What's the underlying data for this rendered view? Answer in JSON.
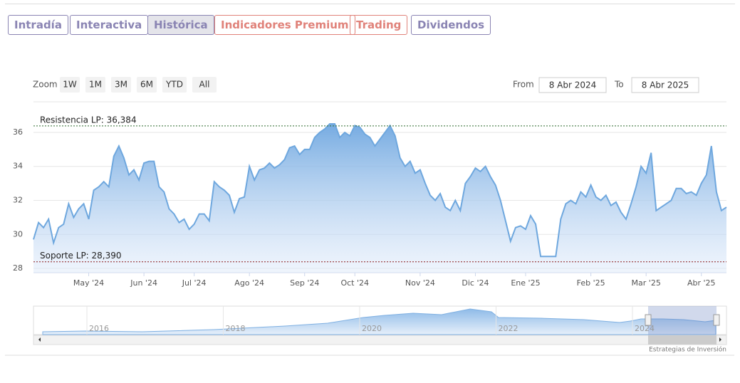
{
  "tabs": [
    "Intradía",
    "Interactiva",
    "Histórica",
    "Indicadores Premium",
    "Trading",
    "Dividendos"
  ],
  "zoom": {
    "label": "Zoom",
    "buttons": [
      "1W",
      "1M",
      "3M",
      "6M",
      "YTD",
      "All"
    ]
  },
  "date_range": {
    "from_label": "From",
    "from": "8 Abr 2024",
    "to_label": "To",
    "to": "8 Abr 2025"
  },
  "navigator": {
    "years": [
      "2016",
      "2018",
      "2020",
      "2022",
      "2024"
    ]
  },
  "credits": "Estrategias de Inversión",
  "chart_data": {
    "type": "area",
    "color": "#6ea7de",
    "grid": true,
    "values": [
      29.7,
      30.7,
      30.4,
      30.9,
      29.5,
      30.4,
      30.6,
      31.8,
      31.0,
      31.5,
      31.8,
      30.9,
      32.6,
      32.8,
      33.1,
      32.8,
      34.6,
      35.2,
      34.5,
      33.5,
      33.8,
      33.2,
      34.2,
      34.3,
      34.3,
      32.8,
      32.5,
      31.5,
      31.2,
      30.7,
      30.9,
      30.3,
      30.6,
      31.2,
      31.2,
      30.8,
      33.1,
      32.8,
      32.6,
      32.3,
      31.3,
      32.1,
      32.2,
      34.0,
      33.2,
      33.8,
      33.9,
      34.2,
      33.9,
      34.1,
      34.4,
      35.1,
      35.2,
      34.7,
      35.0,
      35.0,
      35.7,
      36.0,
      36.2,
      36.5,
      36.5,
      35.7,
      36.0,
      35.8,
      36.4,
      36.3,
      35.9,
      35.7,
      35.2,
      35.6,
      36.0,
      36.4,
      35.8,
      34.5,
      34.0,
      34.3,
      33.6,
      33.8,
      33.0,
      32.3,
      32.0,
      32.4,
      31.6,
      31.4,
      32.0,
      31.4,
      33.0,
      33.4,
      33.9,
      33.7,
      34.0,
      33.4,
      32.9,
      32.0,
      30.8,
      29.6,
      30.4,
      30.5,
      30.3,
      31.1,
      30.6,
      28.7,
      28.7,
      28.7,
      28.7,
      30.9,
      31.8,
      32.0,
      31.8,
      32.5,
      32.2,
      32.9,
      32.2,
      32.0,
      32.3,
      31.7,
      31.9,
      31.3,
      30.9,
      31.8,
      32.8,
      34.0,
      33.6,
      34.8,
      31.4,
      31.6,
      31.8,
      32.0,
      32.7,
      32.7,
      32.4,
      32.5,
      32.3,
      33.0,
      33.5,
      35.2,
      32.5,
      31.4,
      31.6
    ],
    "xlim": [
      0,
      138
    ],
    "xticks": [
      {
        "value": 11,
        "label": "May '24"
      },
      {
        "value": 22,
        "label": "Jun '24"
      },
      {
        "value": 32,
        "label": "Jul '24"
      },
      {
        "value": 43,
        "label": "Ago '24"
      },
      {
        "value": 54,
        "label": "Sep '24"
      },
      {
        "value": 64,
        "label": "Oct '24"
      },
      {
        "value": 77,
        "label": "Nov '24"
      },
      {
        "value": 88,
        "label": "Dic '24"
      },
      {
        "value": 98,
        "label": "Ene '25"
      },
      {
        "value": 111,
        "label": "Feb '25"
      },
      {
        "value": 122,
        "label": "Mar '25"
      },
      {
        "value": 133,
        "label": "Abr '25"
      }
    ],
    "ylim": [
      27.75,
      37.8
    ],
    "yticks": [
      28,
      30,
      32,
      34,
      36
    ],
    "reference_lines": [
      {
        "label": "Resistencia LP: 36,384",
        "value": 36.384,
        "color": "#2e6b2e"
      },
      {
        "label": "Soporte LP: 28,390",
        "value": 28.39,
        "color": "#8b1a1a"
      }
    ]
  }
}
